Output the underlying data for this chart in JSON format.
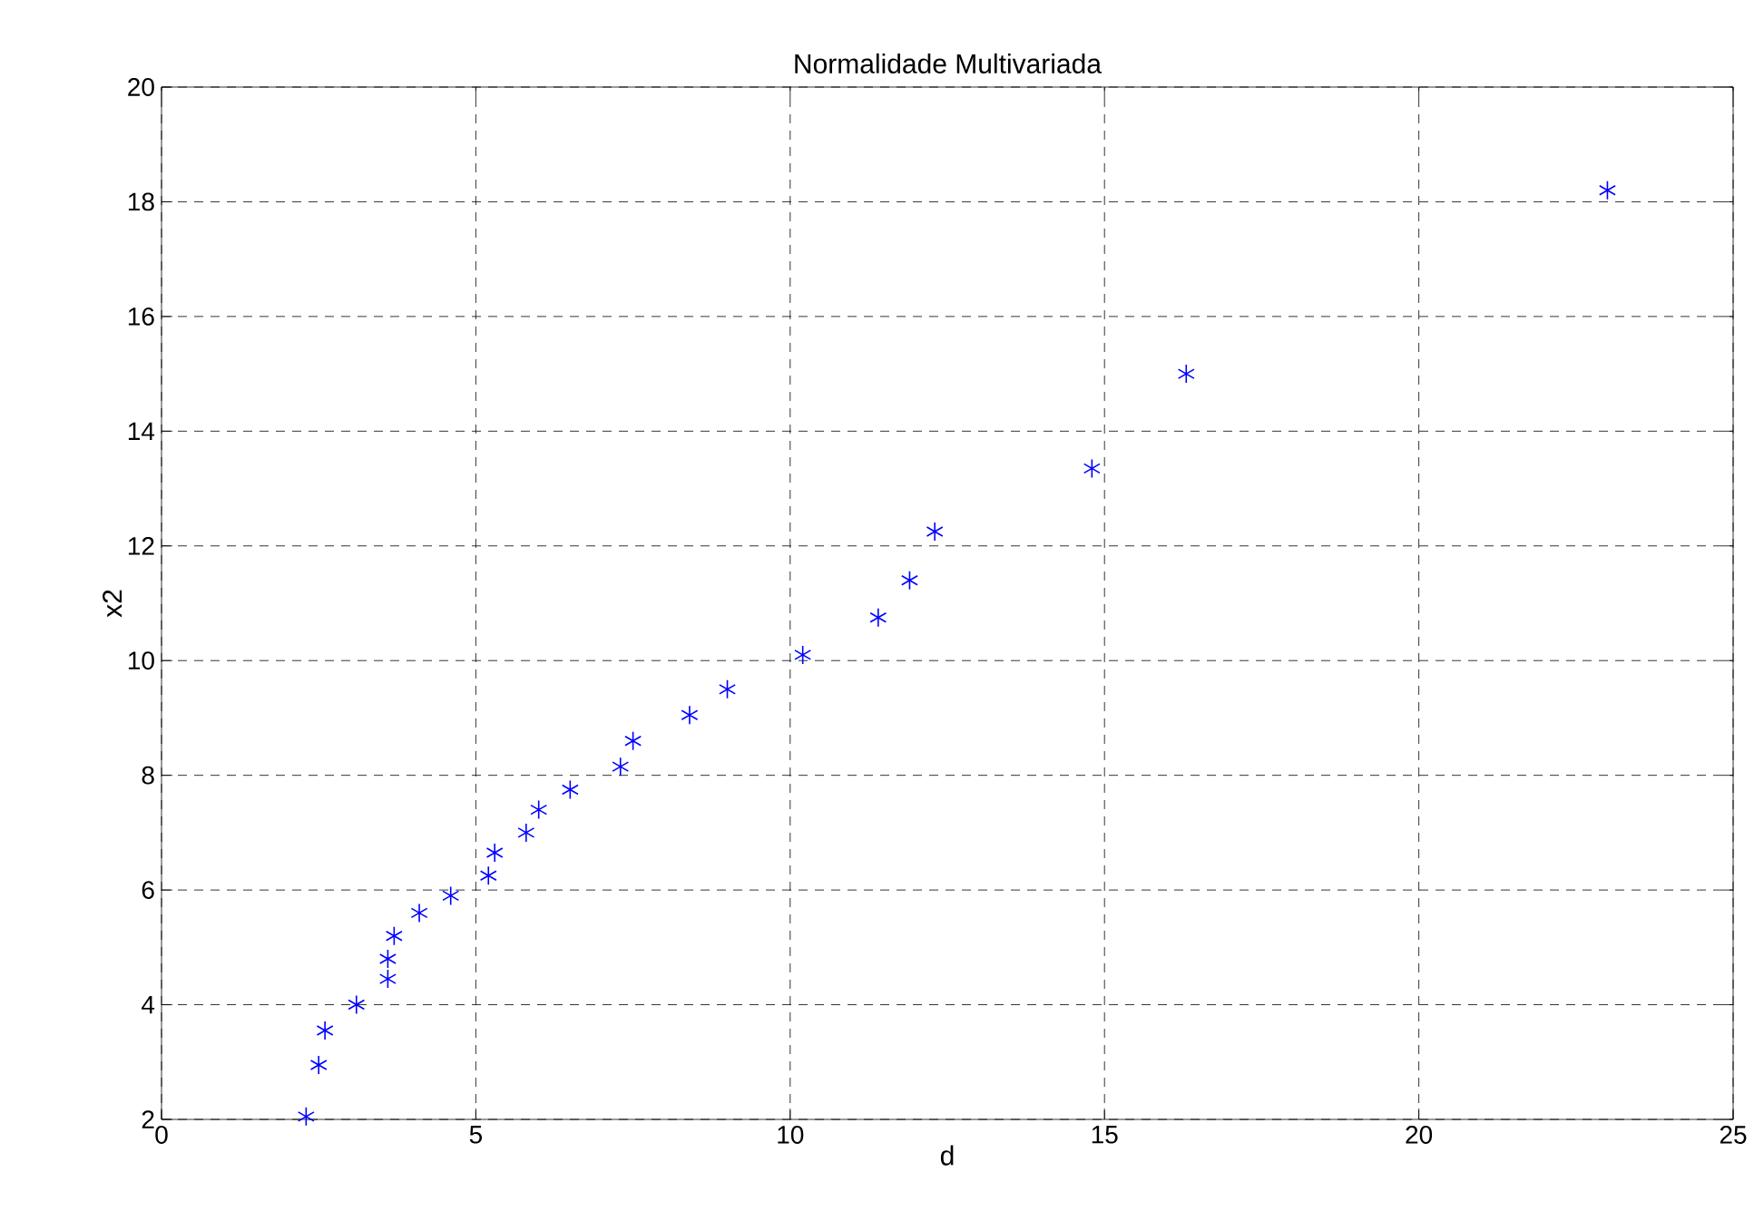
{
  "chart_data": {
    "type": "scatter",
    "title": "Normalidade Multivariada",
    "xlabel": "d",
    "ylabel": "x2",
    "x": [
      2.3,
      2.5,
      2.6,
      3.1,
      3.6,
      3.6,
      3.7,
      4.1,
      4.6,
      5.2,
      5.3,
      5.8,
      6.0,
      6.5,
      7.3,
      7.5,
      8.4,
      9.0,
      10.2,
      11.4,
      11.9,
      12.3,
      14.8,
      16.3,
      23.0
    ],
    "series": [
      {
        "color": "#0000ff",
        "values": [
          2.05,
          2.95,
          3.55,
          4.0,
          4.45,
          4.8,
          5.2,
          5.6,
          5.9,
          6.25,
          6.65,
          7.0,
          7.4,
          7.75,
          8.15,
          8.6,
          9.05,
          9.5,
          10.1,
          10.75,
          11.4,
          12.25,
          13.35,
          15.0,
          18.2
        ]
      }
    ],
    "xlim": [
      0,
      25
    ],
    "ylim": [
      2,
      20
    ],
    "xticks": [
      0,
      5,
      10,
      15,
      20,
      25
    ],
    "yticks": [
      2,
      4,
      6,
      8,
      10,
      12,
      14,
      16,
      18,
      20
    ],
    "grid": true,
    "marker": "cross"
  }
}
